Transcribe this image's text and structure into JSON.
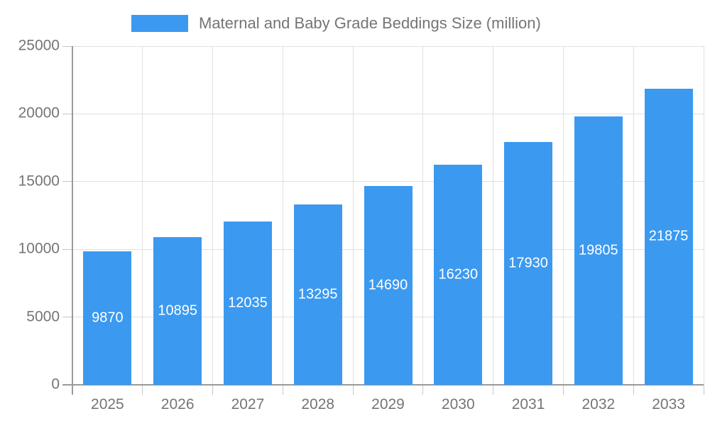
{
  "chart_data": {
    "type": "bar",
    "title": "Maternal and Baby Grade Beddings Size (million)",
    "legend": [
      "Maternal and Baby Grade Beddings Size (million)"
    ],
    "legend_position": "top",
    "categories": [
      "2025",
      "2026",
      "2027",
      "2028",
      "2029",
      "2030",
      "2031",
      "2032",
      "2033"
    ],
    "values": [
      9870,
      10895,
      12035,
      13295,
      14690,
      16230,
      17930,
      19805,
      21875
    ],
    "xlabel": "",
    "ylabel": "",
    "ylim": [
      0,
      25000
    ],
    "yticks": [
      0,
      5000,
      10000,
      15000,
      20000,
      25000
    ],
    "grid": true,
    "bar_color": "#3B99F0",
    "value_label_color": "#ffffff",
    "axis_color": "#9a9a9a",
    "gridline_color": "#e0e0e0",
    "tick_color": "#c6c6c6",
    "text_color": "#757575"
  }
}
